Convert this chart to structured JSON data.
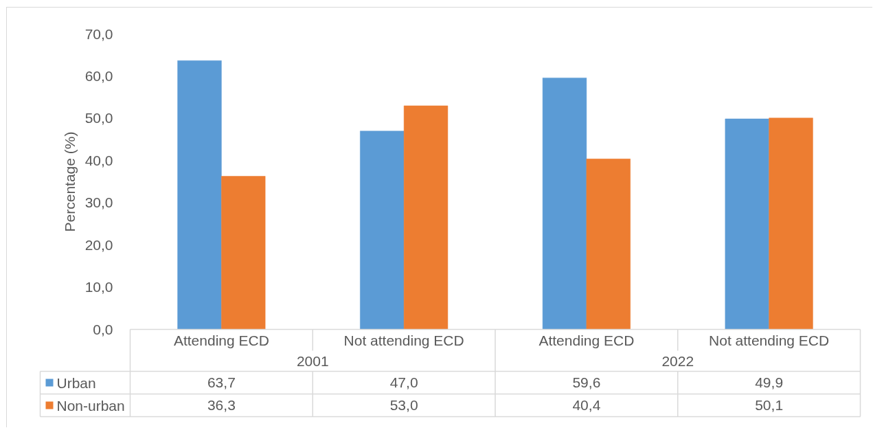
{
  "chart_data": {
    "type": "bar",
    "ylabel": "Percentage (%)",
    "categories": [
      "Attending ECD",
      "Not attending ECD",
      "Attending ECD",
      "Not attending ECD"
    ],
    "annotations": [
      "2001",
      "2022"
    ],
    "series": [
      {
        "name": "Urban",
        "color": "#5b9bd5",
        "values": [
          63.7,
          47.0,
          59.6,
          49.9
        ],
        "value_labels": [
          "63,7",
          "47,0",
          "59,6",
          "49,9"
        ]
      },
      {
        "name": "Non-urban",
        "color": "#ed7d31",
        "values": [
          36.3,
          53.0,
          40.4,
          50.1
        ],
        "value_labels": [
          "36,3",
          "53,0",
          "40,4",
          "50,1"
        ]
      }
    ],
    "ylim": [
      0,
      70
    ],
    "yticks": [
      {
        "value": 0,
        "label": "0,0"
      },
      {
        "value": 10,
        "label": "10,0"
      },
      {
        "value": 20,
        "label": "20,0"
      },
      {
        "value": 30,
        "label": "30,0"
      },
      {
        "value": 40,
        "label": "40,0"
      },
      {
        "value": 50,
        "label": "50,0"
      },
      {
        "value": 60,
        "label": "60,0"
      },
      {
        "value": 70,
        "label": "70,0"
      }
    ],
    "legend": "bottom left"
  }
}
